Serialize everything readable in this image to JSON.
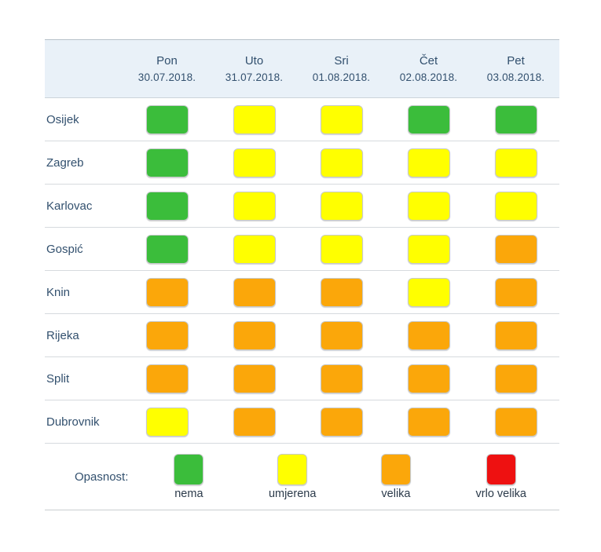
{
  "table": {
    "columns": [
      {
        "day": "Pon",
        "date": "30.07.2018."
      },
      {
        "day": "Uto",
        "date": "31.07.2018."
      },
      {
        "day": "Sri",
        "date": "01.08.2018."
      },
      {
        "day": "Čet",
        "date": "02.08.2018."
      },
      {
        "day": "Pet",
        "date": "03.08.2018."
      }
    ],
    "rows": [
      {
        "city": "Osijek",
        "levels": [
          "nema",
          "umjerena",
          "umjerena",
          "nema",
          "nema"
        ]
      },
      {
        "city": "Zagreb",
        "levels": [
          "nema",
          "umjerena",
          "umjerena",
          "umjerena",
          "umjerena"
        ]
      },
      {
        "city": "Karlovac",
        "levels": [
          "nema",
          "umjerena",
          "umjerena",
          "umjerena",
          "umjerena"
        ]
      },
      {
        "city": "Gospić",
        "levels": [
          "nema",
          "umjerena",
          "umjerena",
          "umjerena",
          "velika"
        ]
      },
      {
        "city": "Knin",
        "levels": [
          "velika",
          "velika",
          "velika",
          "umjerena",
          "velika"
        ]
      },
      {
        "city": "Rijeka",
        "levels": [
          "velika",
          "velika",
          "velika",
          "velika",
          "velika"
        ]
      },
      {
        "city": "Split",
        "levels": [
          "velika",
          "velika",
          "velika",
          "velika",
          "velika"
        ]
      },
      {
        "city": "Dubrovnik",
        "levels": [
          "umjerena",
          "velika",
          "velika",
          "velika",
          "velika"
        ]
      }
    ]
  },
  "legend": {
    "label": "Opasnost:",
    "items": [
      {
        "label": "nema",
        "level": "nema",
        "color": "#3bbd3b"
      },
      {
        "label": "umjerena",
        "level": "umjerena",
        "color": "#ffff00"
      },
      {
        "label": "velika",
        "level": "velika",
        "color": "#fba70a"
      },
      {
        "label": "vrlo velika",
        "level": "vrlo velika",
        "color": "#ee1111"
      }
    ]
  },
  "colors": {
    "nema": "#3bbd3b",
    "umjerena": "#ffff00",
    "velika": "#fba70a",
    "vrlo_velika": "#ee1111",
    "header_background": "#e9f1f8",
    "text": "#32506e"
  }
}
